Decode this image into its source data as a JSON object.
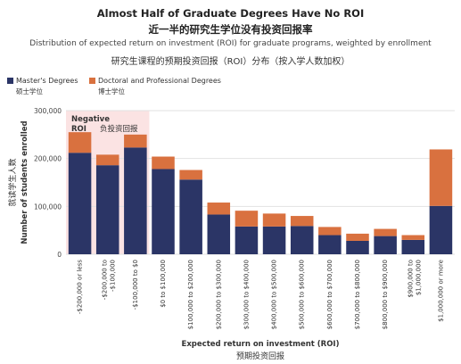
{
  "header": {
    "title": "Almost Half of Graduate Degrees Have No ROI",
    "title_cn": "近一半的研究生学位没有投资回报率",
    "subtitle": "Distribution of expected return on investment (ROI) for graduate programs, weighted by enrollment",
    "subtitle_cn": "研究生课程的预期投资回报（ROI）分布（按入学人数加权）"
  },
  "legend": {
    "masters": "Master's Degrees",
    "masters_cn": "硕士学位",
    "doctoral": "Doctoral and Professional Degrees",
    "doctoral_cn": "博士学位"
  },
  "colors": {
    "masters": "#2b3566",
    "doctoral": "#d9713f",
    "negative_band": "#fbe3e3"
  },
  "chart_data": {
    "type": "bar",
    "stacked": true,
    "title": "Almost Half of Graduate Degrees Have No ROI",
    "xlabel": "Expected return on investment (ROI)",
    "xlabel_cn": "预期投资回报",
    "ylabel": "Number of students enrolled",
    "ylabel_cn": "就读学生人数",
    "ylim": [
      0,
      300000
    ],
    "yticks": [
      0,
      100000,
      200000,
      300000
    ],
    "ytick_labels": [
      "0",
      "100,000",
      "200,000",
      "300,000"
    ],
    "grid": "horizontal",
    "categories": [
      "-$200,000 or less",
      "-$200,000 to -$100,000",
      "-$100,000 to $0",
      "$0 to $100,000",
      "$100,000 to $200,000",
      "$200,000 to $300,000",
      "$300,000 to $400,000",
      "$400,000 to $500,000",
      "$500,000 to $600,000",
      "$600,000 to $700,000",
      "$700,000 to $800,000",
      "$800,000 to $900,000",
      "$900,000 to $1,000,000",
      "$1,000,000 or more"
    ],
    "category_lines": [
      [
        "-$200,000 or less"
      ],
      [
        "-$200,000 to",
        "-$100,000"
      ],
      [
        "-$100,000 to $0"
      ],
      [
        "$0 to $100,000"
      ],
      [
        "$100,000 to $200,000"
      ],
      [
        "$200,000 to $300,000"
      ],
      [
        "$300,000 to $400,000"
      ],
      [
        "$400,000 to $500,000"
      ],
      [
        "$500,000 to $600,000"
      ],
      [
        "$600,000 to $700,000"
      ],
      [
        "$700,000 to $800,000"
      ],
      [
        "$800,000 to $900,000"
      ],
      [
        "$900,000 to",
        "$1,000,000"
      ],
      [
        "$1,000,000 or more"
      ]
    ],
    "series": [
      {
        "name": "Master's Degrees",
        "values": [
          212000,
          186000,
          223000,
          178000,
          156000,
          83000,
          58000,
          58000,
          59000,
          40000,
          28000,
          38000,
          30000,
          101000
        ]
      },
      {
        "name": "Doctoral and Professional Degrees",
        "values": [
          43000,
          22000,
          27000,
          26000,
          20000,
          25000,
          33000,
          27000,
          21000,
          17000,
          15000,
          15000,
          10000,
          118000
        ]
      }
    ],
    "annotation": {
      "label": "Negative ROI",
      "label_cn": "负投资回报",
      "category_span": [
        0,
        2
      ]
    },
    "legend_position": "top-left"
  }
}
